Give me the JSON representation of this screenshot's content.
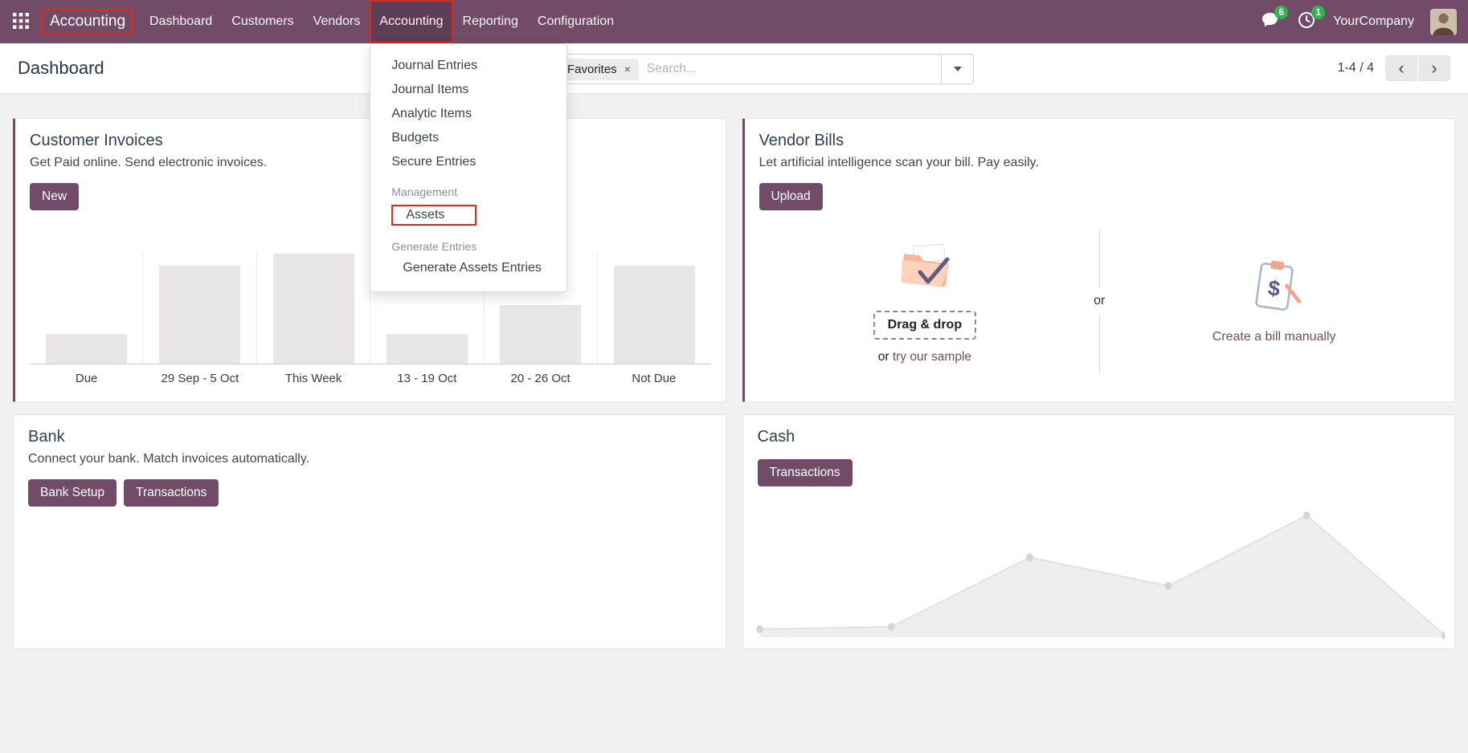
{
  "colors": {
    "navbar_bg": "#714B67",
    "primary_button": "#714B67",
    "badge_green": "#30b455",
    "annotation_red": "#e0281c",
    "page_bg": "#f2f1f1"
  },
  "navbar": {
    "brand": "Accounting",
    "items": [
      {
        "label": "Dashboard"
      },
      {
        "label": "Customers"
      },
      {
        "label": "Vendors"
      },
      {
        "label": "Accounting",
        "open": true,
        "annotated": true
      },
      {
        "label": "Reporting"
      },
      {
        "label": "Configuration"
      }
    ],
    "messages_badge": "6",
    "activities_badge": "1",
    "company": "YourCompany"
  },
  "control_panel": {
    "title": "Dashboard",
    "facet_label": "Favorites",
    "search_placeholder": "Search...",
    "pager": "1-4 / 4"
  },
  "accounting_menu": {
    "items": [
      {
        "label": "Journal Entries",
        "type": "item"
      },
      {
        "label": "Journal Items",
        "type": "item"
      },
      {
        "label": "Analytic Items",
        "type": "item"
      },
      {
        "label": "Budgets",
        "type": "item"
      },
      {
        "label": "Secure Entries",
        "type": "item"
      },
      {
        "label": "Management",
        "type": "header"
      },
      {
        "label": "Assets",
        "type": "item",
        "annotated": true
      },
      {
        "label": "Generate Entries",
        "type": "header"
      },
      {
        "label": "Generate Assets Entries",
        "type": "item"
      }
    ]
  },
  "cards": {
    "customer_invoices": {
      "title": "Customer Invoices",
      "subtitle": "Get Paid online. Send electronic invoices.",
      "new_button": "New"
    },
    "vendor_bills": {
      "title": "Vendor Bills",
      "subtitle": "Let artificial intelligence scan your bill. Pay easily.",
      "upload_button": "Upload",
      "drag_drop": "Drag & drop",
      "or_text": "or",
      "sample_link": "try our sample",
      "divider_or": "or",
      "manual_link": "Create a bill manually"
    },
    "bank": {
      "title": "Bank",
      "subtitle": "Connect your bank. Match invoices automatically.",
      "bank_setup_button": "Bank Setup",
      "transactions_button": "Transactions"
    },
    "cash": {
      "title": "Cash",
      "transactions_button": "Transactions"
    }
  },
  "icons": {
    "apps": "grid-icon",
    "messages": "chat-bubble-icon",
    "activities": "clock-icon",
    "facet_remove": "x-icon",
    "search_toggle": "caret-down-icon",
    "pager_prev": "chevron-left-icon",
    "pager_next": "chevron-right-icon",
    "drag_drop": "folder-check-icon",
    "create_bill": "clipboard-dollar-icon"
  },
  "chart_data": [
    {
      "type": "bar",
      "location": "customer-invoices-card",
      "categories": [
        "Due",
        "29 Sep - 5 Oct",
        "This Week",
        "13 - 19 Oct",
        "20 - 26 Oct",
        "Not Due"
      ],
      "values": [
        27,
        89,
        100,
        27,
        53,
        89
      ],
      "ylim": [
        0,
        100
      ],
      "bar_color": "#e8e6e7",
      "note": "y-axis unlabeled; values are relative bar heights"
    },
    {
      "type": "area",
      "location": "cash-card",
      "x_percent": [
        1,
        20,
        40,
        60,
        80,
        100
      ],
      "values": [
        6,
        8,
        64,
        41,
        98,
        1
      ],
      "ylim": [
        0,
        100
      ],
      "line_color": "#e3e0e1",
      "fill_color": "#efeeee",
      "note": "unlabeled sparkline; values are relative heights"
    }
  ]
}
